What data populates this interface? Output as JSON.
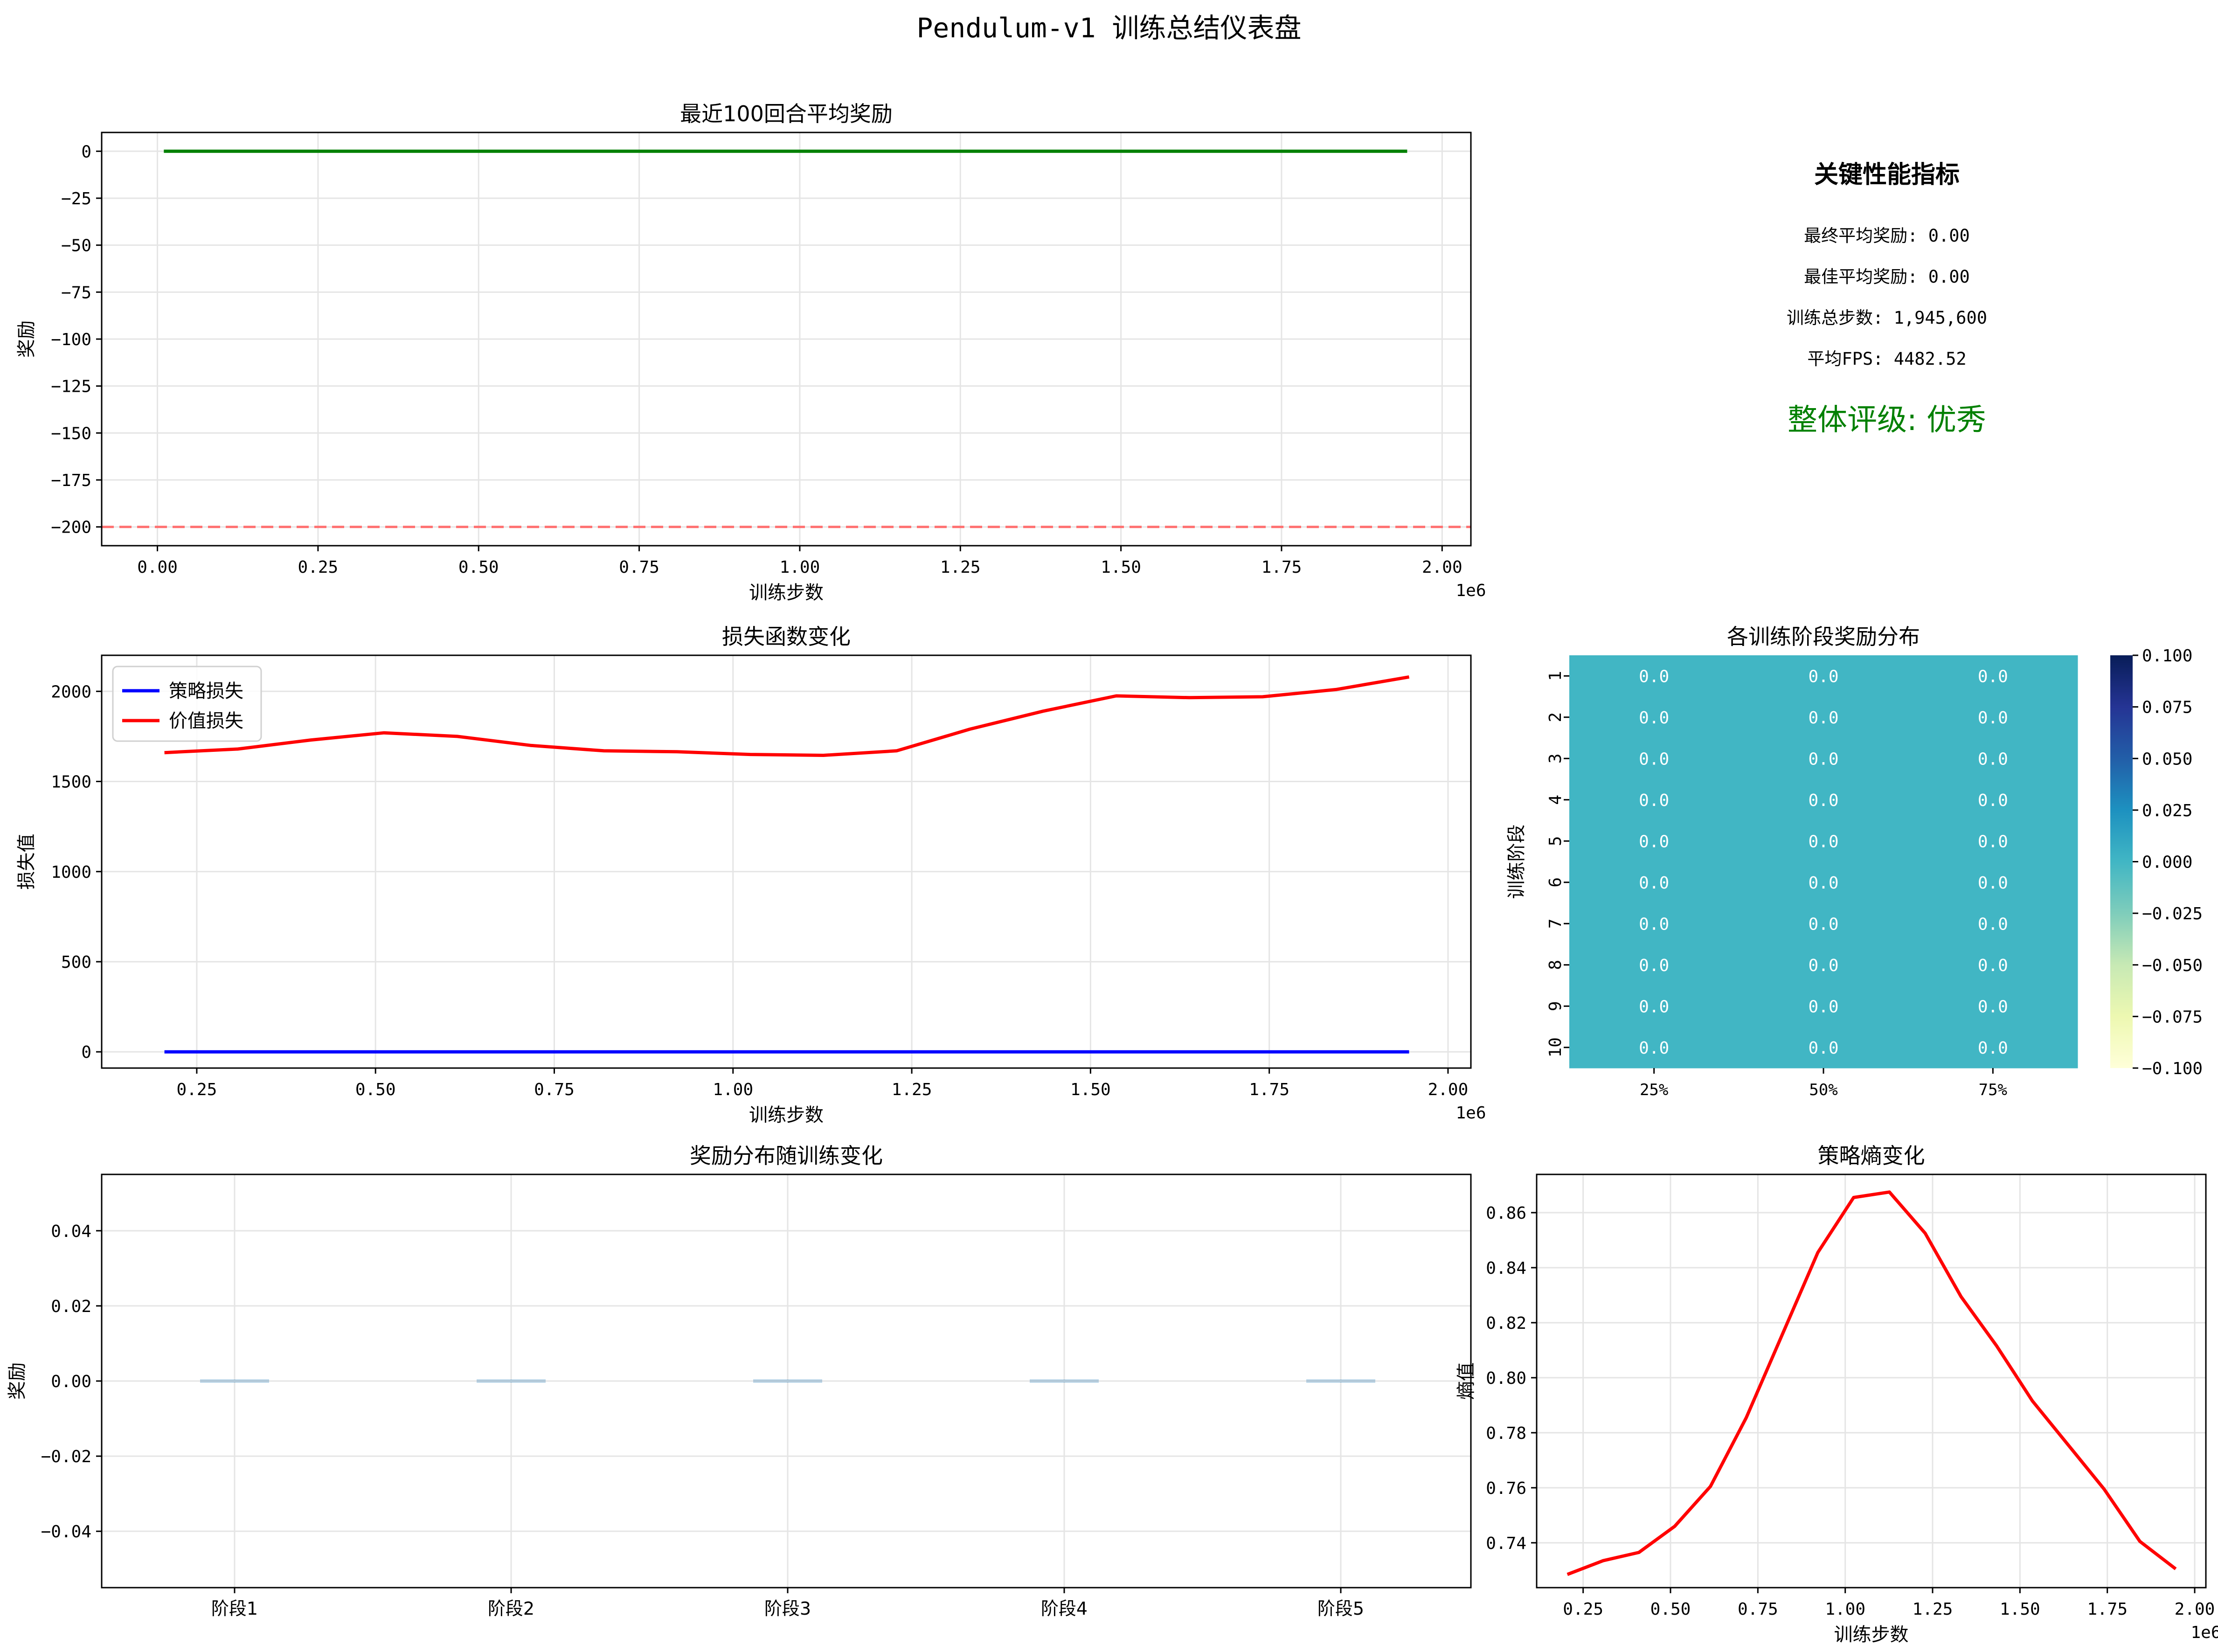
{
  "title": "Pendulum-v1 训练总结仪表盘",
  "colors": {
    "green": "#008000",
    "red": "#ff0000",
    "blue": "#0000ff",
    "threshold": "#ff6f6f",
    "boxplot": "#1f77b4",
    "heat_cell": "#41b6c4",
    "grid": "#e5e5e5"
  },
  "kpi": {
    "heading": "关键性能指标",
    "lines": [
      "最终平均奖励: 0.00",
      "最佳平均奖励: 0.00",
      "训练总步数: 1,945,600",
      "平均FPS: 4482.52"
    ],
    "rating": "整体评级: 优秀"
  },
  "chart_data": [
    {
      "id": "reward",
      "type": "line",
      "title": "最近100回合平均奖励",
      "xlabel": "训练步数",
      "ylabel": "奖励",
      "x_offset_label": "1e6",
      "xlim": [
        -0.0868,
        2.0448
      ],
      "ylim": [
        -210,
        10
      ],
      "xticks": [
        0.0,
        0.25,
        0.5,
        0.75,
        1.0,
        1.25,
        1.5,
        1.75,
        2.0
      ],
      "xtick_labels": [
        "0.00",
        "0.25",
        "0.50",
        "0.75",
        "1.00",
        "1.25",
        "1.50",
        "1.75",
        "2.00"
      ],
      "yticks": [
        0,
        -25,
        -50,
        -75,
        -100,
        -125,
        -150,
        -175,
        -200
      ],
      "ytick_labels": [
        "0",
        "−25",
        "−50",
        "−75",
        "−100",
        "−125",
        "−150",
        "−175",
        "−200"
      ],
      "grid": true,
      "series": [
        {
          "color": "green",
          "x": [
            0.01,
            1.9456
          ],
          "y": [
            0,
            0
          ]
        }
      ],
      "hlines": [
        {
          "y": -200,
          "color": "threshold",
          "style": "dashed"
        }
      ]
    },
    {
      "id": "loss",
      "type": "line",
      "title": "损失函数变化",
      "xlabel": "训练步数",
      "ylabel": "损失值",
      "x_offset_label": "1e6",
      "xlim": [
        0.117,
        2.032
      ],
      "ylim": [
        -90,
        2200
      ],
      "xticks": [
        0.25,
        0.5,
        0.75,
        1.0,
        1.25,
        1.5,
        1.75,
        2.0
      ],
      "xtick_labels": [
        "0.25",
        "0.50",
        "0.75",
        "1.00",
        "1.25",
        "1.50",
        "1.75",
        "2.00"
      ],
      "yticks": [
        0,
        500,
        1000,
        1500,
        2000
      ],
      "ytick_labels": [
        "0",
        "500",
        "1000",
        "1500",
        "2000"
      ],
      "grid": true,
      "legend_position": "upper-left",
      "series": [
        {
          "name": "策略损失",
          "color": "blue",
          "x": [
            0.2048,
            1.9456
          ],
          "y": [
            0,
            0
          ]
        },
        {
          "name": "价值损失",
          "color": "red",
          "x": [
            0.2048,
            0.3072,
            0.4096,
            0.512,
            0.6144,
            0.7168,
            0.8192,
            0.9216,
            1.024,
            1.1264,
            1.2288,
            1.3312,
            1.4336,
            1.536,
            1.6384,
            1.7408,
            1.8432,
            1.9456
          ],
          "y": [
            1660,
            1680,
            1730,
            1770,
            1750,
            1700,
            1670,
            1665,
            1650,
            1645,
            1670,
            1790,
            1890,
            1975,
            1965,
            1970,
            2010,
            2080
          ]
        }
      ]
    },
    {
      "id": "heatmap",
      "type": "heatmap",
      "title": "各训练阶段奖励分布",
      "ylabel": "训练阶段",
      "row_labels": [
        "1",
        "2",
        "3",
        "4",
        "5",
        "6",
        "7",
        "8",
        "9",
        "10"
      ],
      "col_labels": [
        "25%",
        "50%",
        "75%"
      ],
      "values": [
        [
          0.0,
          0.0,
          0.0
        ],
        [
          0.0,
          0.0,
          0.0
        ],
        [
          0.0,
          0.0,
          0.0
        ],
        [
          0.0,
          0.0,
          0.0
        ],
        [
          0.0,
          0.0,
          0.0
        ],
        [
          0.0,
          0.0,
          0.0
        ],
        [
          0.0,
          0.0,
          0.0
        ],
        [
          0.0,
          0.0,
          0.0
        ],
        [
          0.0,
          0.0,
          0.0
        ],
        [
          0.0,
          0.0,
          0.0
        ]
      ],
      "cell_labels": [
        "0.0",
        "0.0",
        "0.0",
        "0.0",
        "0.0",
        "0.0",
        "0.0",
        "0.0",
        "0.0",
        "0.0",
        "0.0",
        "0.0",
        "0.0",
        "0.0",
        "0.0",
        "0.0",
        "0.0",
        "0.0",
        "0.0",
        "0.0",
        "0.0",
        "0.0",
        "0.0",
        "0.0",
        "0.0",
        "0.0",
        "0.0",
        "0.0",
        "0.0",
        "0.0"
      ],
      "colorbar": {
        "vmin": -0.1,
        "vmax": 0.1,
        "colormap": "YlGnBu",
        "ticks": [
          0.1,
          0.075,
          0.05,
          0.025,
          0.0,
          -0.025,
          -0.05,
          -0.075,
          -0.1
        ],
        "tick_labels": [
          "0.100",
          "0.075",
          "0.050",
          "0.025",
          "0.000",
          "−0.025",
          "−0.050",
          "−0.075",
          "−0.100"
        ]
      }
    },
    {
      "id": "boxplot",
      "type": "box",
      "title": "奖励分布随训练变化",
      "ylabel": "奖励",
      "categories": [
        "阶段1",
        "阶段2",
        "阶段3",
        "阶段4",
        "阶段5"
      ],
      "values": [
        0,
        0,
        0,
        0,
        0
      ],
      "ylim": [
        -0.055,
        0.055
      ],
      "yticks": [
        0.04,
        0.02,
        0.0,
        -0.02,
        -0.04
      ],
      "ytick_labels": [
        "0.04",
        "0.02",
        "0.00",
        "−0.02",
        "−0.04"
      ],
      "grid": true
    },
    {
      "id": "entropy",
      "type": "line",
      "title": "策略熵变化",
      "xlabel": "训练步数",
      "ylabel": "熵值",
      "x_offset_label": "1e6",
      "xlim": [
        0.117,
        2.032
      ],
      "ylim": [
        0.7237,
        0.8739
      ],
      "xticks": [
        0.25,
        0.5,
        0.75,
        1.0,
        1.25,
        1.5,
        1.75,
        2.0
      ],
      "xtick_labels": [
        "0.25",
        "0.50",
        "0.75",
        "1.00",
        "1.25",
        "1.50",
        "1.75",
        "2.00"
      ],
      "yticks": [
        0.74,
        0.76,
        0.78,
        0.8,
        0.82,
        0.84,
        0.86
      ],
      "ytick_labels": [
        "0.74",
        "0.76",
        "0.78",
        "0.80",
        "0.82",
        "0.84",
        "0.86"
      ],
      "grid": true,
      "series": [
        {
          "color": "red",
          "x": [
            0.2048,
            0.3072,
            0.4096,
            0.512,
            0.6144,
            0.7168,
            0.8192,
            0.9216,
            1.024,
            1.1264,
            1.2288,
            1.3312,
            1.4336,
            1.536,
            1.6384,
            1.7408,
            1.8432,
            1.9456
          ],
          "y": [
            0.7285,
            0.7335,
            0.7365,
            0.746,
            0.7605,
            0.7855,
            0.8155,
            0.8455,
            0.8655,
            0.8675,
            0.8525,
            0.8295,
            0.8115,
            0.7915,
            0.7755,
            0.7595,
            0.7405,
            0.7305
          ]
        }
      ]
    }
  ]
}
